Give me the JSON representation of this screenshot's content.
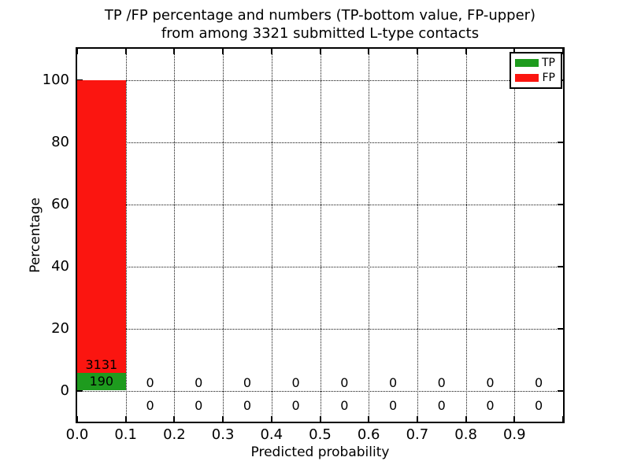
{
  "figure": {
    "title_line1": "TP /FP percentage and numbers (TP-bottom value, FP-upper)",
    "title_line2": "from among 3321 submitted L-type contacts"
  },
  "axes": {
    "xlabel": "Predicted probability",
    "ylabel": "Percentage",
    "xlim": [
      0.0,
      1.0
    ],
    "ylim": [
      -10,
      110
    ],
    "xticks": [
      {
        "v": 0.0,
        "label": "0.0"
      },
      {
        "v": 0.1,
        "label": "0.1"
      },
      {
        "v": 0.2,
        "label": "0.2"
      },
      {
        "v": 0.3,
        "label": "0.3"
      },
      {
        "v": 0.4,
        "label": "0.4"
      },
      {
        "v": 0.5,
        "label": "0.5"
      },
      {
        "v": 0.6,
        "label": "0.6"
      },
      {
        "v": 0.7,
        "label": "0.7"
      },
      {
        "v": 0.8,
        "label": "0.8"
      },
      {
        "v": 0.9,
        "label": "0.9"
      },
      {
        "v": 1.0,
        "label": ""
      }
    ],
    "yticks": [
      {
        "v": 0,
        "label": "0"
      },
      {
        "v": 20,
        "label": "20"
      },
      {
        "v": 40,
        "label": "40"
      },
      {
        "v": 60,
        "label": "60"
      },
      {
        "v": 80,
        "label": "80"
      },
      {
        "v": 100,
        "label": "100"
      }
    ],
    "grid_style": "dotted"
  },
  "legend": {
    "position": "upper-right",
    "items": [
      {
        "label": "TP",
        "color": "#1e9b1e"
      },
      {
        "label": "FP",
        "color": "#fb1510"
      }
    ]
  },
  "chart_data": {
    "type": "bar",
    "stacked": true,
    "title": "TP /FP percentage and numbers (TP-bottom value, FP-upper) from among 3321 submitted L-type contacts",
    "xlabel": "Predicted probability",
    "ylabel": "Percentage",
    "total_contacts": 3321,
    "bin_edges": [
      0.0,
      0.1,
      0.2,
      0.3,
      0.4,
      0.5,
      0.6,
      0.7,
      0.8,
      0.9,
      1.0
    ],
    "series": [
      {
        "name": "TP",
        "color": "#1e9b1e",
        "counts": [
          190,
          0,
          0,
          0,
          0,
          0,
          0,
          0,
          0,
          0
        ],
        "percent": [
          5.72,
          0,
          0,
          0,
          0,
          0,
          0,
          0,
          0,
          0
        ]
      },
      {
        "name": "FP",
        "color": "#fb1510",
        "counts": [
          3131,
          0,
          0,
          0,
          0,
          0,
          0,
          0,
          0,
          0
        ],
        "percent": [
          94.28,
          0,
          0,
          0,
          0,
          0,
          0,
          0,
          0,
          0
        ]
      }
    ],
    "ylim": [
      -10,
      110
    ],
    "grid": true,
    "legend_position": "upper right"
  }
}
